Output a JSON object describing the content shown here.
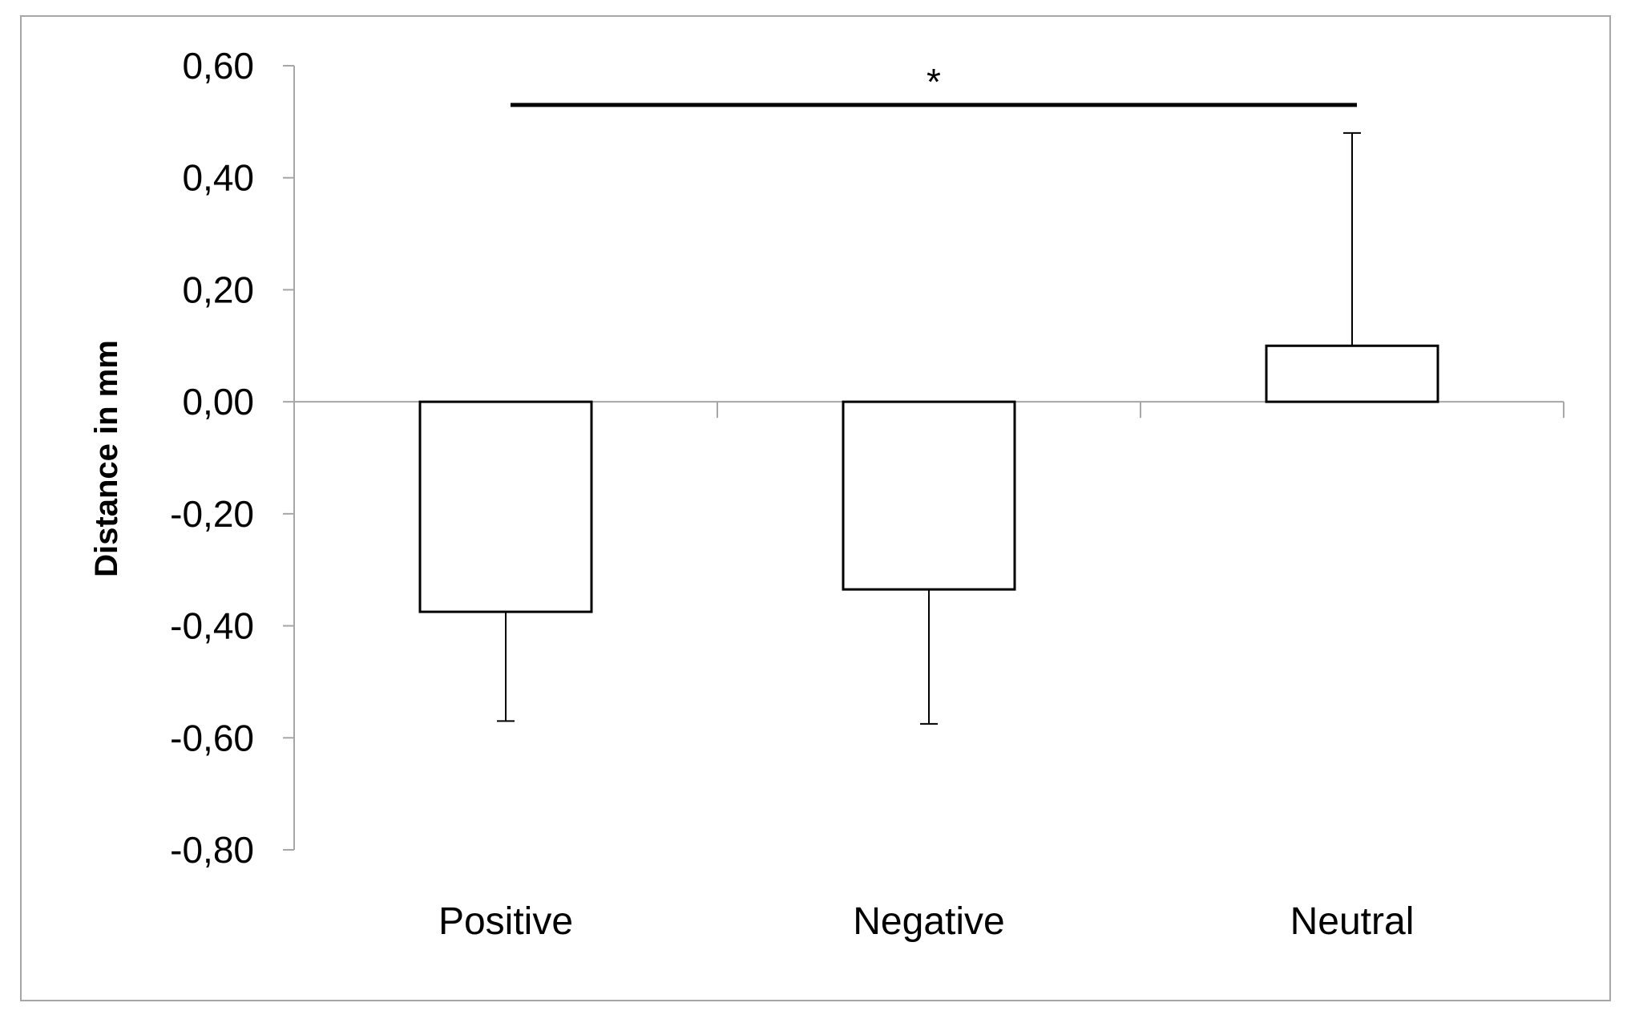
{
  "chart_data": {
    "type": "bar",
    "title": "",
    "xlabel": "",
    "ylabel": "Distance in mm",
    "categories": [
      "Positive",
      "Negative",
      "Neutral"
    ],
    "values": [
      -0.375,
      -0.335,
      0.1
    ],
    "error_bars": [
      {
        "category": "Positive",
        "direction": "down",
        "end": -0.57
      },
      {
        "category": "Negative",
        "direction": "down",
        "end": -0.575
      },
      {
        "category": "Neutral",
        "direction": "up",
        "end": 0.48
      }
    ],
    "ylim": [
      -0.8,
      0.6
    ],
    "yticks": [
      0.6,
      0.4,
      0.2,
      0.0,
      -0.2,
      -0.4,
      -0.6,
      -0.8
    ],
    "ytick_labels": [
      "0,60",
      "0,40",
      "0,20",
      "0,00",
      "-0,20",
      "-0,40",
      "-0,60",
      "-0,80"
    ],
    "significance": {
      "from": "Positive",
      "to": "Neutral",
      "line_y": 0.53,
      "label": "*"
    },
    "grid": false,
    "legend": "none",
    "bar_fill": "#ffffff",
    "bar_stroke": "#000000",
    "axis_color": "#a6a6a6",
    "frame_color": "#a6a6a6"
  }
}
